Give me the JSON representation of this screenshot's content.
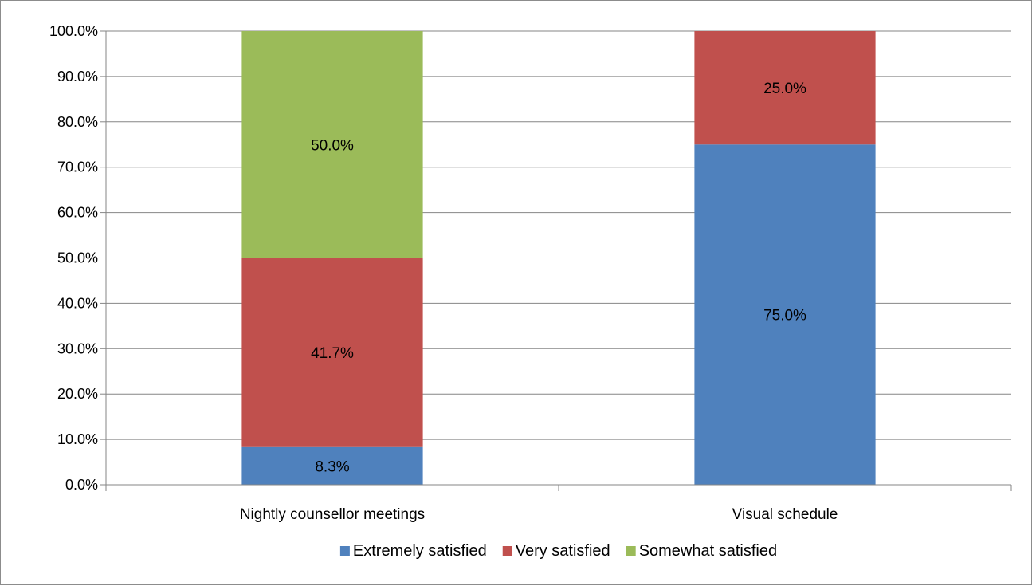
{
  "chart_data": {
    "type": "bar",
    "stacked": true,
    "categories": [
      "Nightly counsellor meetings",
      "Visual schedule"
    ],
    "series": [
      {
        "name": "Extremely satisfied",
        "color": "#4f81bd",
        "values": [
          8.3,
          75.0
        ],
        "labels": [
          "8.3%",
          "75.0%"
        ]
      },
      {
        "name": "Very satisfied",
        "color": "#c0504d",
        "values": [
          41.7,
          25.0
        ],
        "labels": [
          "41.7%",
          "25.0%"
        ]
      },
      {
        "name": "Somewhat satisfied",
        "color": "#9bbb59",
        "values": [
          50.0,
          0
        ],
        "labels": [
          "50.0%",
          ""
        ]
      }
    ],
    "yticks": [
      "0.0%",
      "10.0%",
      "20.0%",
      "30.0%",
      "40.0%",
      "50.0%",
      "60.0%",
      "70.0%",
      "80.0%",
      "90.0%",
      "100.0%"
    ],
    "ylim": [
      0,
      100
    ],
    "grid": true,
    "legend_position": "bottom"
  }
}
